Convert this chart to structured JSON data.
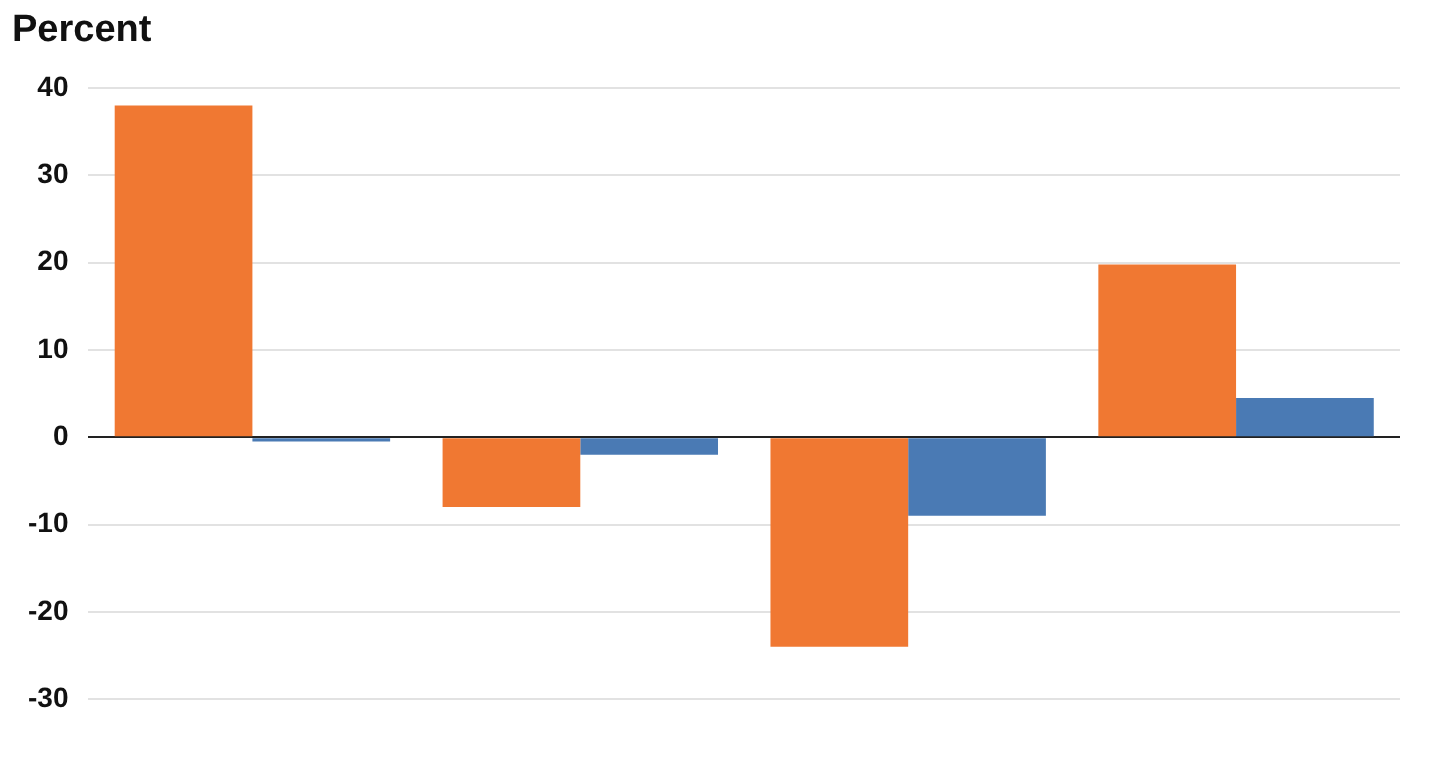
{
  "chart_data": {
    "type": "bar",
    "ylabel": "Percent",
    "categories": [
      null,
      null,
      null,
      null
    ],
    "series": [
      {
        "color": "#f07832",
        "values": [
          38,
          -8,
          -24,
          19.8
        ]
      },
      {
        "color": "#4a7ab4",
        "values": [
          -0.5,
          -2,
          -9,
          4.5
        ]
      }
    ],
    "ylim": [
      -30,
      40
    ],
    "yticks": [
      -30,
      -20,
      -10,
      0,
      10,
      20,
      30,
      40
    ],
    "grid": "y"
  }
}
